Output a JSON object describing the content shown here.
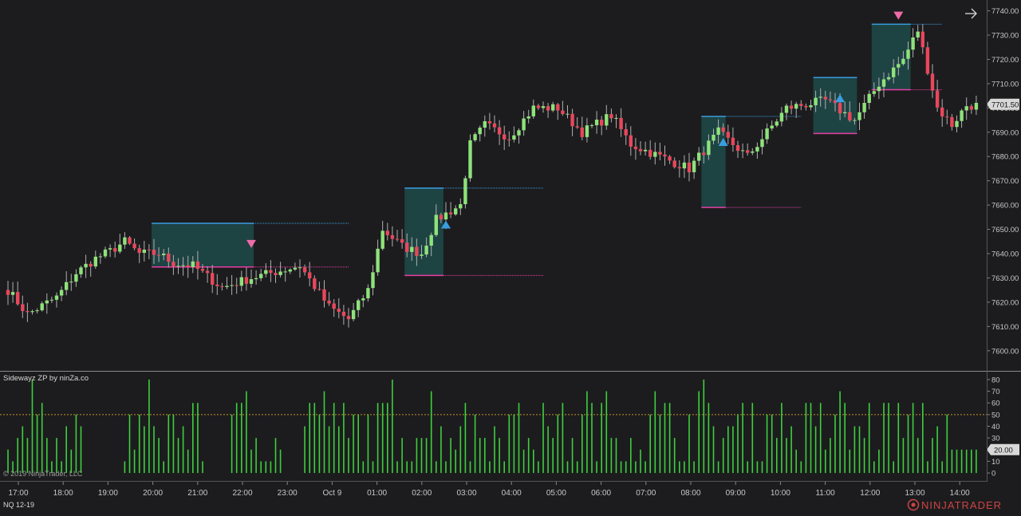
{
  "app": {
    "copyright": "© 2019 NinjaTrader, LLC",
    "instrument": "NQ 12-19",
    "brand": "NINJATRADER",
    "panel_title": "Sidewayz ZP by ninZa.co",
    "scroll_icon": "arrow-right-icon"
  },
  "colors": {
    "background": "#1c1c1e",
    "up": "#8ee27a",
    "down": "#e8475c",
    "box_fill": "#1f4a4a",
    "box_top": "#3a9de0",
    "box_bottom": "#e83ea4",
    "arrow_up": "#3a9de0",
    "arrow_down": "#f06aa8",
    "histogram": "#3ecf3e",
    "threshold": "#c8902a",
    "price_tag": "#d8d8d8"
  },
  "chart_data": [
    {
      "type": "candlestick",
      "ylim": [
        7595,
        7742
      ],
      "y_ticks": [
        7600,
        7610,
        7620,
        7630,
        7640,
        7650,
        7660,
        7670,
        7680,
        7690,
        7700,
        7710,
        7720,
        7730,
        7740
      ],
      "x_ticks": [
        "17:00",
        "18:00",
        "19:00",
        "20:00",
        "21:00",
        "22:00",
        "23:00",
        "Oct 9",
        "01:00",
        "02:00",
        "03:00",
        "04:00",
        "05:00",
        "06:00",
        "07:00",
        "08:00",
        "09:00",
        "10:00",
        "11:00",
        "12:00",
        "13:00",
        "14:00"
      ],
      "last_price": "7701.50",
      "price_path": [
        [
          0,
          7625
        ],
        [
          4,
          7615
        ],
        [
          10,
          7622
        ],
        [
          14,
          7632
        ],
        [
          18,
          7638
        ],
        [
          21,
          7641
        ],
        [
          24,
          7645
        ],
        [
          27,
          7640
        ],
        [
          31,
          7640
        ],
        [
          34,
          7636
        ],
        [
          38,
          7635
        ],
        [
          44,
          7626
        ],
        [
          50,
          7630
        ],
        [
          54,
          7632
        ],
        [
          60,
          7635
        ],
        [
          66,
          7618
        ],
        [
          70,
          7613
        ],
        [
          74,
          7625
        ],
        [
          77,
          7650
        ],
        [
          81,
          7643
        ],
        [
          85,
          7640
        ],
        [
          88,
          7654
        ],
        [
          93,
          7660
        ],
        [
          95,
          7685
        ],
        [
          98,
          7693
        ],
        [
          103,
          7688
        ],
        [
          108,
          7700
        ],
        [
          113,
          7700
        ],
        [
          118,
          7690
        ],
        [
          124,
          7697
        ],
        [
          128,
          7685
        ],
        [
          134,
          7680
        ],
        [
          140,
          7675
        ],
        [
          146,
          7690
        ],
        [
          152,
          7680
        ],
        [
          156,
          7690
        ],
        [
          160,
          7700
        ],
        [
          168,
          7703
        ],
        [
          174,
          7695
        ],
        [
          179,
          7710
        ],
        [
          184,
          7720
        ],
        [
          187,
          7732
        ],
        [
          191,
          7700
        ],
        [
          194,
          7693
        ],
        [
          197,
          7701
        ]
      ],
      "zones": [
        {
          "start": 30,
          "end": 50,
          "top": 7652.5,
          "bottom": 7634.5,
          "ext_end": 70
        },
        {
          "start": 82,
          "end": 89,
          "top": 7667,
          "bottom": 7631,
          "ext_end": 110
        },
        {
          "start": 143,
          "end": 147,
          "top": 7696.5,
          "bottom": 7659,
          "ext_end": 163
        },
        {
          "start": 166,
          "end": 174,
          "top": 7712.5,
          "bottom": 7689.5,
          "ext_end": 174
        },
        {
          "start": 178,
          "end": 185,
          "top": 7734.5,
          "bottom": 7707.5,
          "ext_end": 192
        }
      ],
      "signals": [
        {
          "x": 50,
          "price": 7644,
          "dir": "down"
        },
        {
          "x": 90,
          "price": 7652,
          "dir": "up"
        },
        {
          "x": 147,
          "price": 7686,
          "dir": "up"
        },
        {
          "x": 171,
          "price": 7704,
          "dir": "up"
        },
        {
          "x": 183,
          "price": 7738,
          "dir": "down"
        }
      ]
    },
    {
      "type": "bar",
      "title": "Sidewayz ZP by ninZa.co",
      "ylim": [
        -2,
        82
      ],
      "y_ticks": [
        0,
        10,
        20,
        30,
        40,
        50,
        60,
        70,
        80
      ],
      "threshold": 50,
      "current_value": "20.00"
    }
  ]
}
